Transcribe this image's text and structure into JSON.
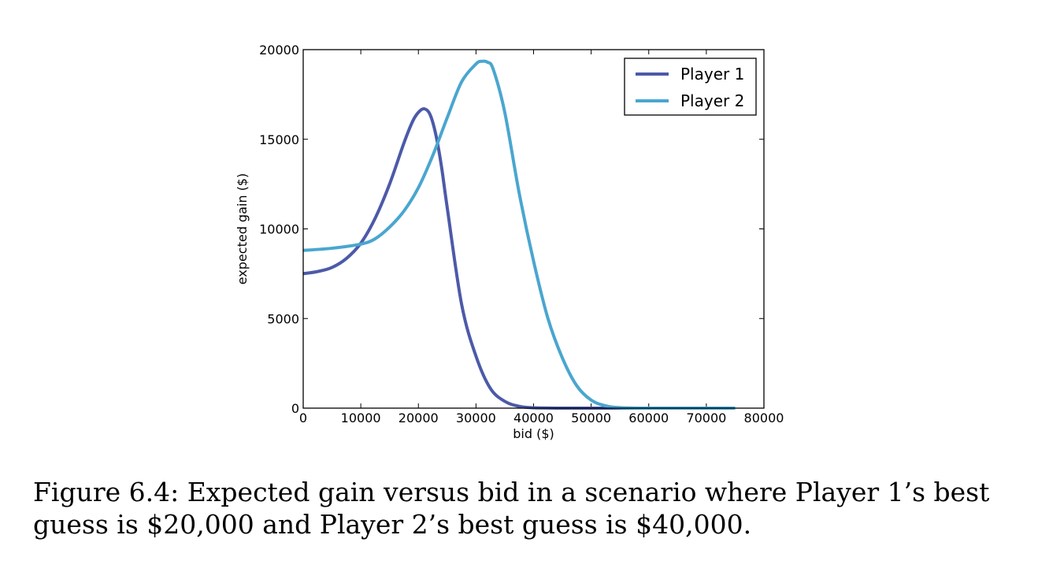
{
  "chart_data": {
    "type": "line",
    "xlabel": "bid ($)",
    "ylabel": "expected gain ($)",
    "xlim": [
      0,
      80000
    ],
    "ylim": [
      0,
      20000
    ],
    "xticks": [
      0,
      10000,
      20000,
      30000,
      40000,
      50000,
      60000,
      70000,
      80000
    ],
    "yticks": [
      0,
      5000,
      10000,
      15000,
      20000
    ],
    "xtick_labels": [
      "0",
      "10000",
      "20000",
      "30000",
      "40000",
      "50000",
      "60000",
      "70000",
      "80000"
    ],
    "ytick_labels": [
      "0",
      "5000",
      "10000",
      "15000",
      "20000"
    ],
    "grid": false,
    "legend_position": "top-right",
    "series": [
      {
        "name": "Player 1",
        "color": "#4c5aa8",
        "x": [
          0,
          2500,
          5000,
          7500,
          10000,
          12500,
          15000,
          17500,
          19000,
          20000,
          21000,
          22000,
          23000,
          24000,
          25000,
          27500,
          30000,
          32500,
          35000,
          37500,
          40000,
          45000,
          50000,
          60000,
          70000,
          75000
        ],
        "y": [
          7500,
          7620,
          7850,
          8350,
          9200,
          10600,
          12500,
          14800,
          16000,
          16500,
          16700,
          16400,
          15300,
          13500,
          11200,
          5800,
          2900,
          1100,
          380,
          100,
          20,
          0,
          0,
          0,
          0,
          0
        ]
      },
      {
        "name": "Player 2",
        "color": "#4aa6cf",
        "x": [
          0,
          5000,
          10000,
          12500,
          15000,
          17500,
          20000,
          22500,
          25000,
          27500,
          30000,
          31000,
          32000,
          33000,
          35000,
          37500,
          40000,
          42500,
          45000,
          47500,
          50000,
          52500,
          55000,
          60000,
          65000,
          75000
        ],
        "y": [
          8800,
          8920,
          9150,
          9450,
          10100,
          11000,
          12300,
          14100,
          16200,
          18200,
          19200,
          19350,
          19300,
          18900,
          16500,
          12000,
          8200,
          5000,
          2800,
          1250,
          450,
          130,
          30,
          0,
          0,
          0
        ]
      }
    ]
  },
  "caption": {
    "line1": "Figure 6.4: Expected gain versus bid in a scenario where Player 1’s best",
    "line2": "guess is $20,000 and Player 2’s best guess is $40,000."
  }
}
